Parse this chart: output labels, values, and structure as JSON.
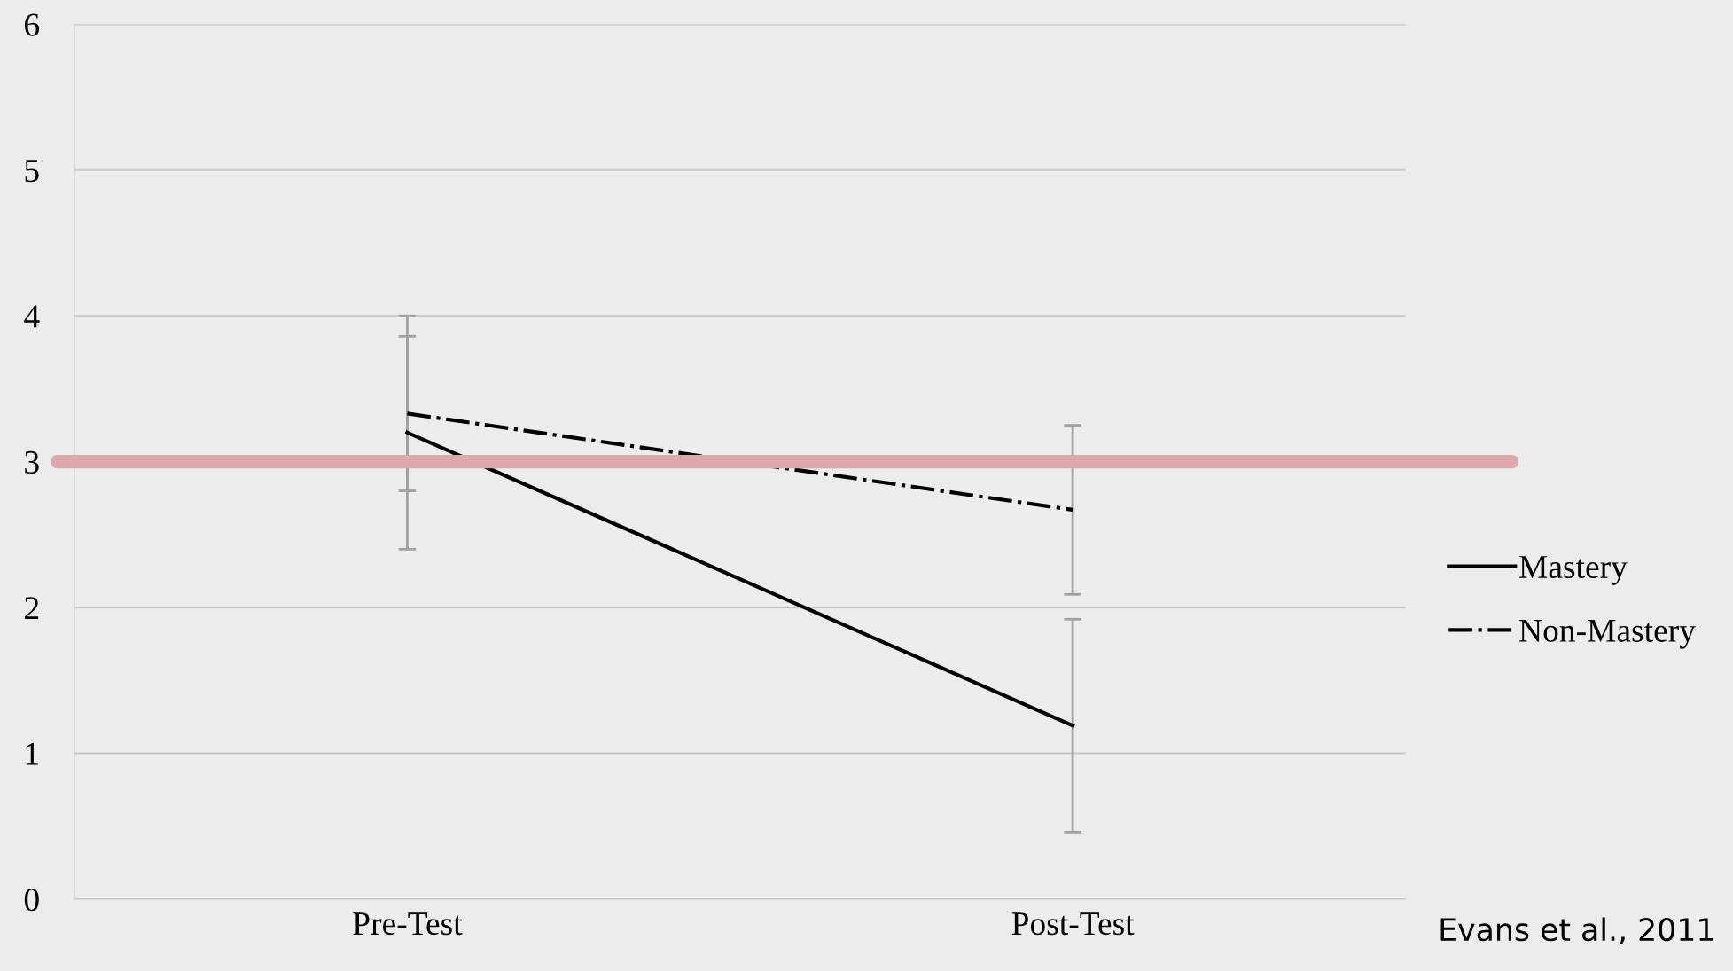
{
  "chart_data": {
    "type": "line",
    "categories": [
      "Pre-Test",
      "Post-Test"
    ],
    "series": [
      {
        "name": "Mastery",
        "color": "#000000",
        "line_style": "solid",
        "values": [
          3.2,
          1.19
        ],
        "errors": [
          0.8,
          0.73
        ]
      },
      {
        "name": "Non-Mastery",
        "color": "#000000",
        "line_style": "dashdot",
        "values": [
          3.33,
          2.67
        ],
        "errors": [
          0.53,
          0.58
        ]
      }
    ],
    "ylim": [
      0,
      6
    ],
    "yticks": [
      0,
      1,
      2,
      3,
      4,
      5,
      6
    ],
    "grid": "y",
    "legend": "right",
    "marker": "none",
    "ref_lines": [
      {
        "axis": "y",
        "value": 3,
        "color": "#dba9a9"
      }
    ],
    "annotations": [
      "Evans et al., 2011"
    ]
  }
}
